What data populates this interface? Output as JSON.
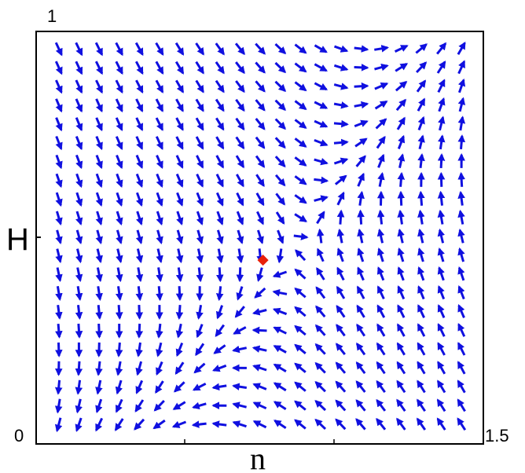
{
  "chart_data": {
    "type": "vector-field",
    "title": "",
    "xlabel": "n",
    "ylabel": "H",
    "xlim": [
      0,
      1.5
    ],
    "ylim": [
      0,
      1
    ],
    "tick_labels": {
      "x_min": "0",
      "x_max": "1.5",
      "y_max": "1"
    },
    "grid": false,
    "arrow_color": "#1010e0",
    "grid_points": {
      "nx": 21,
      "ny": 21
    },
    "equilibrium_point": {
      "n": 0.76,
      "H": 0.44,
      "color": "#e8200a"
    }
  }
}
